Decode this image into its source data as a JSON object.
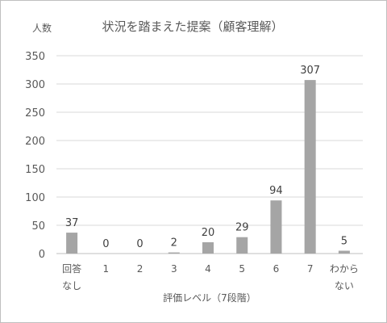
{
  "chart_data": {
    "type": "bar",
    "title": "状況を踏まえた提案（顧客理解）",
    "ylabel": "人数",
    "xlabel": "評価レベル（7段階）",
    "categories": [
      [
        "回答",
        "なし"
      ],
      [
        "1"
      ],
      [
        "2"
      ],
      [
        "3"
      ],
      [
        "4"
      ],
      [
        "5"
      ],
      [
        "6"
      ],
      [
        "7"
      ],
      [
        "わから",
        "ない"
      ]
    ],
    "values": [
      37,
      0,
      0,
      2,
      20,
      29,
      94,
      307,
      5
    ],
    "ylim": [
      0,
      350
    ],
    "yticks": [
      0,
      50,
      100,
      150,
      200,
      250,
      300,
      350
    ],
    "grid": true,
    "bar_color": "#a5a5a5"
  }
}
